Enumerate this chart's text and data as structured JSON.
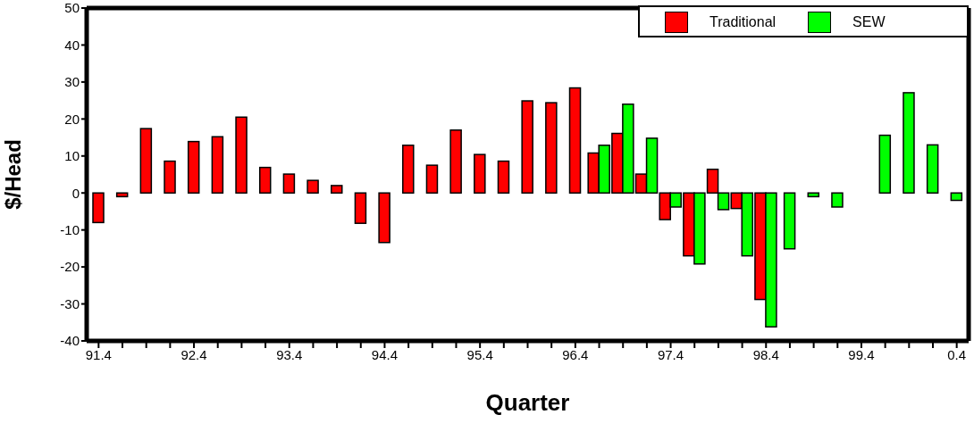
{
  "chart_data": {
    "type": "bar",
    "xlabel": "Quarter",
    "ylabel": "$/Head",
    "categories": [
      "91.4",
      null,
      null,
      null,
      "92.4",
      null,
      null,
      null,
      "93.4",
      null,
      null,
      null,
      "94.4",
      null,
      null,
      null,
      "95.4",
      null,
      null,
      null,
      "96.4",
      null,
      null,
      null,
      "97.4",
      null,
      null,
      null,
      "98.4",
      null,
      null,
      null,
      "99.4",
      null,
      null,
      null,
      "0.4"
    ],
    "series": [
      {
        "name": "Traditional",
        "color": "#ff0000",
        "values": [
          -8,
          -1,
          17.4,
          8.6,
          13.9,
          15.2,
          20.5,
          6.9,
          5.1,
          3.4,
          2,
          -8.2,
          -13.4,
          12.9,
          7.5,
          17,
          10.4,
          8.6,
          24.9,
          24.4,
          28.4,
          10.8,
          16.1,
          5.1,
          -7.2,
          -17,
          6.4,
          -4.2,
          -28.8,
          null,
          null,
          null,
          null,
          null,
          null,
          null,
          null
        ]
      },
      {
        "name": "SEW",
        "color": "#00ff00",
        "values": [
          null,
          null,
          null,
          null,
          null,
          null,
          null,
          null,
          null,
          null,
          null,
          null,
          null,
          null,
          null,
          null,
          null,
          null,
          null,
          null,
          null,
          12.9,
          24,
          14.8,
          -3.8,
          -19.2,
          -4.5,
          -17,
          -36.2,
          -15.1,
          -1,
          -3.8,
          0,
          15.6,
          27.1,
          13,
          -2
        ]
      }
    ],
    "ylim": [
      -40,
      50
    ],
    "yticks": [
      -40,
      -30,
      -20,
      -10,
      0,
      10,
      20,
      30,
      40,
      50
    ],
    "grid": false,
    "legend": "top right"
  }
}
